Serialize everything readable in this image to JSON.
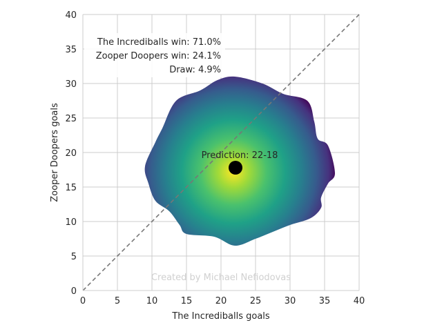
{
  "chart_data": {
    "type": "scatter",
    "title": "",
    "xlabel": "The Incrediballs goals",
    "ylabel": "Zooper Doopers goals",
    "xlim": [
      0,
      40
    ],
    "ylim": [
      0,
      40
    ],
    "xticks": [
      0,
      5,
      10,
      15,
      20,
      25,
      30,
      35,
      40
    ],
    "yticks": [
      0,
      5,
      10,
      15,
      20,
      25,
      30,
      35,
      40
    ],
    "grid": true,
    "colormap": "viridis",
    "density_center": [
      21.8,
      17.2
    ],
    "density_boundary": [
      [
        36.5,
        17
      ],
      [
        35.5,
        21
      ],
      [
        34,
        22
      ],
      [
        33.5,
        24.5
      ],
      [
        32.5,
        27.5
      ],
      [
        29,
        28.5
      ],
      [
        26,
        30
      ],
      [
        22,
        31
      ],
      [
        19.5,
        30.5
      ],
      [
        17,
        29
      ],
      [
        13.5,
        27.5
      ],
      [
        11.5,
        23.5
      ],
      [
        10.5,
        21.5
      ],
      [
        9,
        18
      ],
      [
        9.5,
        15.5
      ],
      [
        10.5,
        13
      ],
      [
        12.5,
        11.5
      ],
      [
        14,
        9.5
      ],
      [
        15,
        8.2
      ],
      [
        19,
        7.8
      ],
      [
        22,
        6.5
      ],
      [
        25,
        7.5
      ],
      [
        27.5,
        8.5
      ],
      [
        30,
        9.5
      ],
      [
        33,
        10.5
      ],
      [
        34.5,
        12
      ],
      [
        34.5,
        13.5
      ],
      [
        35.5,
        15.5
      ]
    ],
    "diagonal": {
      "from": [
        0,
        0
      ],
      "to": [
        40,
        40
      ],
      "style": "dashed",
      "color": "#777777"
    },
    "prediction_point": {
      "x": 22.1,
      "y": 17.8,
      "color": "#000000"
    },
    "annotations": {
      "prediction": "Prediction: 22-18",
      "home_win": "The Incrediballs win: 71.0%",
      "away_win": "Zooper Doopers win: 24.1%",
      "draw": "Draw: 4.9%",
      "watermark": "Created by Michael Nefiodovas"
    },
    "colors": {
      "grid": "#cccccc",
      "axes_edge": "#cccccc",
      "text": "#262626",
      "watermark": "#d0d0d0"
    }
  }
}
